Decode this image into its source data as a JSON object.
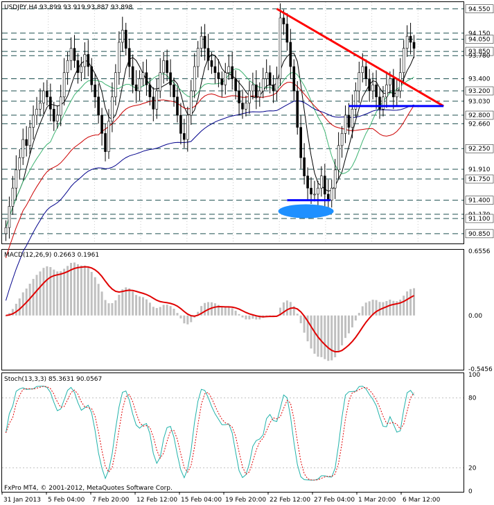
{
  "chart_data": [
    {
      "type": "candlestick",
      "symbol": "USDJPY,H4",
      "header": "USDJPY,H4  93.899 93.919 93.887 93.898",
      "ohlc_last": [
        93.899,
        93.919,
        93.887,
        93.898
      ],
      "ylim": [
        90.7,
        94.65
      ],
      "price_labels": [
        "94.550",
        "94.150",
        "94.050",
        "93.850",
        "93.780",
        "93.400",
        "93.200",
        "93.030",
        "92.800",
        "92.660",
        "92.250",
        "91.910",
        "91.750",
        "91.400",
        "91.170",
        "91.100",
        "90.850"
      ],
      "highlighted_levels": [
        "94.550",
        "94.050",
        "93.850",
        "93.200",
        "92.800",
        "92.250",
        "91.750",
        "91.400",
        "91.100",
        "90.850"
      ],
      "close_series": [
        90.95,
        91.3,
        91.6,
        91.9,
        92.1,
        92.4,
        92.3,
        92.6,
        92.8,
        92.9,
        93.0,
        93.2,
        93.1,
        92.9,
        92.7,
        92.8,
        93.1,
        93.5,
        93.7,
        93.9,
        93.7,
        93.5,
        93.6,
        93.8,
        93.6,
        93.3,
        93.1,
        92.8,
        92.5,
        92.2,
        92.7,
        93.1,
        93.5,
        94.0,
        94.2,
        93.9,
        93.6,
        93.3,
        93.2,
        93.4,
        93.5,
        93.3,
        93.1,
        92.9,
        93.2,
        93.5,
        93.7,
        93.5,
        93.3,
        93.1,
        92.8,
        92.5,
        92.4,
        92.8,
        93.2,
        93.6,
        93.9,
        94.1,
        93.9,
        93.7,
        93.6,
        93.5,
        93.4,
        93.3,
        93.5,
        93.6,
        93.4,
        93.2,
        93.0,
        92.9,
        93.0,
        93.2,
        93.3,
        93.1,
        93.2,
        93.4,
        93.5,
        93.3,
        93.2,
        93.4,
        94.4,
        94.3,
        94.0,
        93.6,
        93.2,
        92.6,
        92.1,
        91.8,
        91.6,
        91.5,
        91.5,
        91.6,
        91.8,
        91.5,
        91.4,
        91.6,
        91.9,
        92.3,
        92.5,
        92.8,
        92.6,
        92.9,
        93.2,
        93.5,
        93.6,
        93.4,
        93.2,
        93.3,
        93.1,
        92.9,
        93.1,
        93.3,
        93.4,
        93.1,
        93.2,
        93.5,
        93.9,
        94.1,
        94.0,
        93.9
      ],
      "trendlines": [
        {
          "name": "resistance",
          "color": "#ff0000",
          "from": [
            79,
            94.55
          ],
          "to": [
            126,
            92.95
          ]
        },
        {
          "name": "support",
          "color": "#0000ff",
          "from": [
            100,
            92.95
          ],
          "to": [
            126,
            92.95
          ]
        },
        {
          "name": "low-level",
          "color": "#0000ff",
          "from": [
            82,
            91.4
          ],
          "to": [
            93,
            91.4
          ]
        }
      ],
      "x_labels": [
        "31 Jan 2013",
        "5 Feb 04:00",
        "7 Feb 20:00",
        "12 Feb 12:00",
        "15 Feb 04:00",
        "19 Feb 20:00",
        "22 Feb 12:00",
        "27 Feb 04:00",
        "1 Mar 20:00",
        "6 Mar 12:00"
      ],
      "colors": {
        "candle": "#000000",
        "ma_fast": "#000000",
        "ma_green": "#3cb371",
        "ma_red": "#cc0000",
        "ma_blue": "#00008b",
        "trend_red": "#ff0000",
        "trend_blue": "#0000ff",
        "ellipse": "#1e90ff"
      }
    },
    {
      "type": "macd",
      "header": "MACD(12,26,9) 0.2663 0.1961",
      "ylim": [
        -0.5456,
        0.6556
      ],
      "y_labels": [
        "0.6556",
        "0.00",
        "-0.5456"
      ],
      "hist_color": "#c0c0c0",
      "signal_color": "#e00000"
    },
    {
      "type": "stochastic",
      "header": "Stoch(13,3,3) 85.3631 90.0567",
      "ylim": [
        0,
        100
      ],
      "y_labels": [
        "100",
        "80",
        "20",
        "0"
      ],
      "main_color": "#20b2aa",
      "signal_color": "#e00000",
      "footer": "FxPro MT4, © 2001-2012, MetaQuotes Software Corp."
    }
  ]
}
